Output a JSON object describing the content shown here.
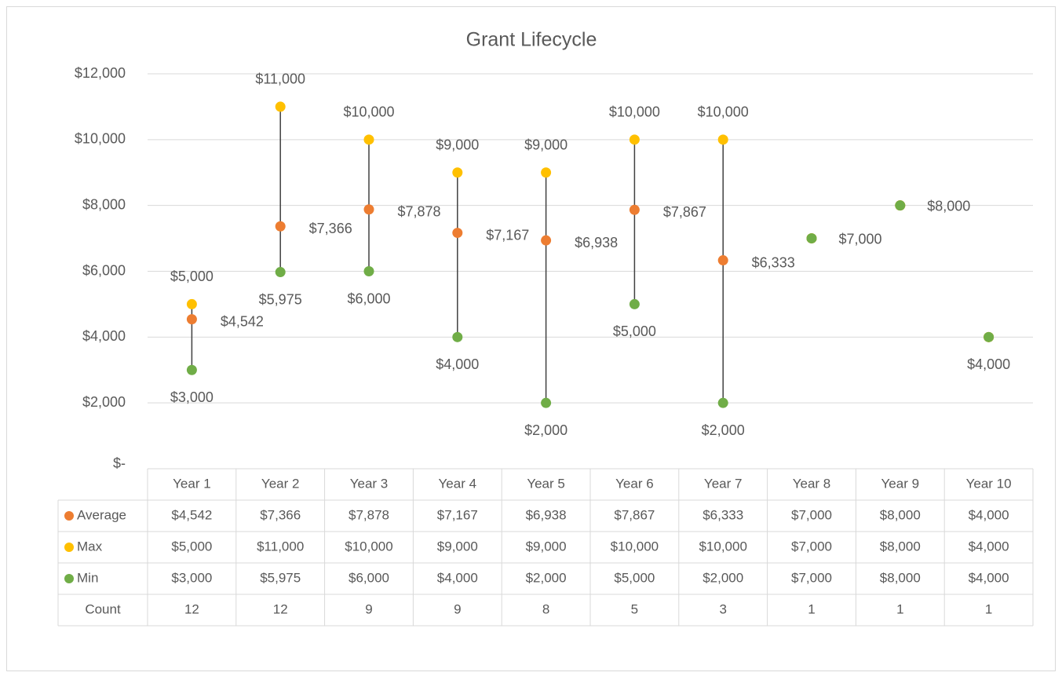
{
  "chart_data": {
    "type": "line",
    "title": "Grant Lifecycle",
    "categories": [
      "Year 1",
      "Year 2",
      "Year 3",
      "Year 4",
      "Year 5",
      "Year 6",
      "Year 7",
      "Year 8",
      "Year 9",
      "Year 10"
    ],
    "series": [
      {
        "name": "Average",
        "color": "#ed7d31",
        "values": [
          4542,
          7366,
          7878,
          7167,
          6938,
          7867,
          6333,
          7000,
          8000,
          4000
        ],
        "value_labels": [
          "$4,542",
          "$7,366",
          "$7,878",
          "$7,167",
          "$6,938",
          "$7,867",
          "$6,333",
          "$7,000",
          "$8,000",
          "$4,000"
        ]
      },
      {
        "name": "Max",
        "color": "#ffc000",
        "values": [
          5000,
          11000,
          10000,
          9000,
          9000,
          10000,
          10000,
          7000,
          8000,
          4000
        ],
        "value_labels": [
          "$5,000",
          "$11,000",
          "$10,000",
          "$9,000",
          "$9,000",
          "$10,000",
          "$10,000",
          "$7,000",
          "$8,000",
          "$4,000"
        ]
      },
      {
        "name": "Min",
        "color": "#70ad47",
        "values": [
          3000,
          5975,
          6000,
          4000,
          2000,
          5000,
          2000,
          7000,
          8000,
          4000
        ],
        "value_labels": [
          "$3,000",
          "$5,975",
          "$6,000",
          "$4,000",
          "$2,000",
          "$5,000",
          "$2,000",
          "$7,000",
          "$8,000",
          "$4,000"
        ]
      }
    ],
    "table_extra_rows": [
      {
        "name": "Count",
        "values": [
          12,
          12,
          9,
          9,
          8,
          5,
          3,
          1,
          1,
          1
        ]
      }
    ],
    "ylim": [
      0,
      12000
    ],
    "yticks": [
      {
        "value": 0,
        "label": "$-"
      },
      {
        "value": 2000,
        "label": "$2,000"
      },
      {
        "value": 4000,
        "label": "$4,000"
      },
      {
        "value": 6000,
        "label": "$6,000"
      },
      {
        "value": 8000,
        "label": "$8,000"
      },
      {
        "value": 10000,
        "label": "$10,000"
      },
      {
        "value": 12000,
        "label": "$12,000"
      }
    ],
    "grid": true,
    "high_low_lines": true
  }
}
